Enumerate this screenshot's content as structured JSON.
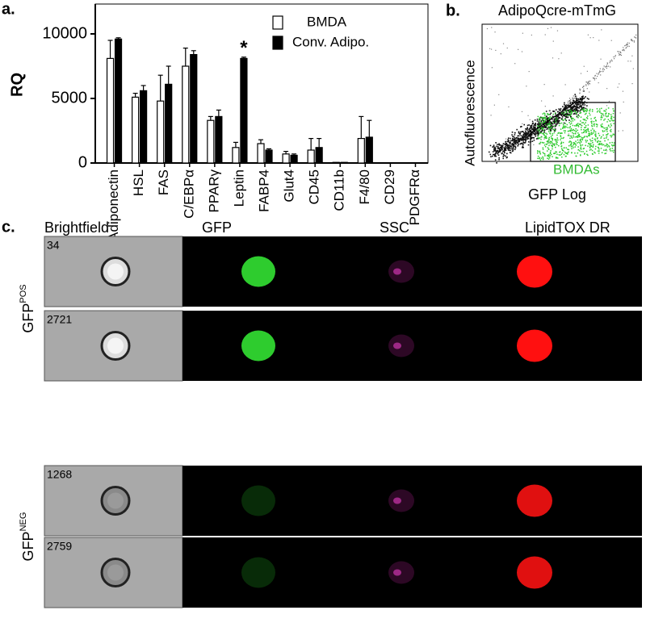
{
  "panel_labels": [
    "a.",
    "b.",
    "c."
  ],
  "chart_data": {
    "type": "bar",
    "ylabel": "RQ",
    "categories": [
      "Adiponectin",
      "HSL",
      "FAS",
      "C/EBPα",
      "PPARγ",
      "Leptin",
      "FABP4",
      "Glut4",
      "CD45",
      "CD11b",
      "F4/80",
      "CD29",
      "PDGFRα"
    ],
    "series": [
      {
        "name": "BMDA",
        "color": "#ffffff",
        "values": [
          8100,
          5100,
          4800,
          7500,
          3300,
          1200,
          1500,
          700,
          1000,
          50,
          1900,
          20,
          10
        ],
        "errors": [
          1400,
          300,
          2000,
          1400,
          300,
          400,
          300,
          200,
          900,
          0,
          1700,
          0,
          0
        ]
      },
      {
        "name": "Conv. Adipo.",
        "color": "#000000",
        "values": [
          9600,
          5600,
          6100,
          8400,
          3600,
          8100,
          1000,
          600,
          1200,
          50,
          2000,
          20,
          10
        ],
        "errors": [
          100,
          400,
          1400,
          300,
          500,
          100,
          100,
          100,
          700,
          0,
          1300,
          0,
          0
        ]
      }
    ],
    "annotations": [
      {
        "text": "*",
        "category": "Leptin"
      }
    ],
    "ylim": [
      0,
      12000
    ],
    "yticks": [
      0,
      5000,
      10000
    ],
    "legend": "upper right"
  },
  "flow": {
    "title": "AdipoQcre-mTmG",
    "xlabel": "GFP Log",
    "ylabel": "Autofluorescence",
    "gate_label": "BMDAs"
  },
  "imaging": {
    "channels": [
      "Brightfield",
      "GFP",
      "SSC",
      "LipidTOX DR"
    ],
    "groups": [
      {
        "label": "GFP",
        "sup": "POS",
        "rows": [
          "34",
          "2721"
        ]
      },
      {
        "label": "GFP",
        "sup": "NEG",
        "rows": [
          "1268",
          "2759"
        ]
      }
    ]
  }
}
